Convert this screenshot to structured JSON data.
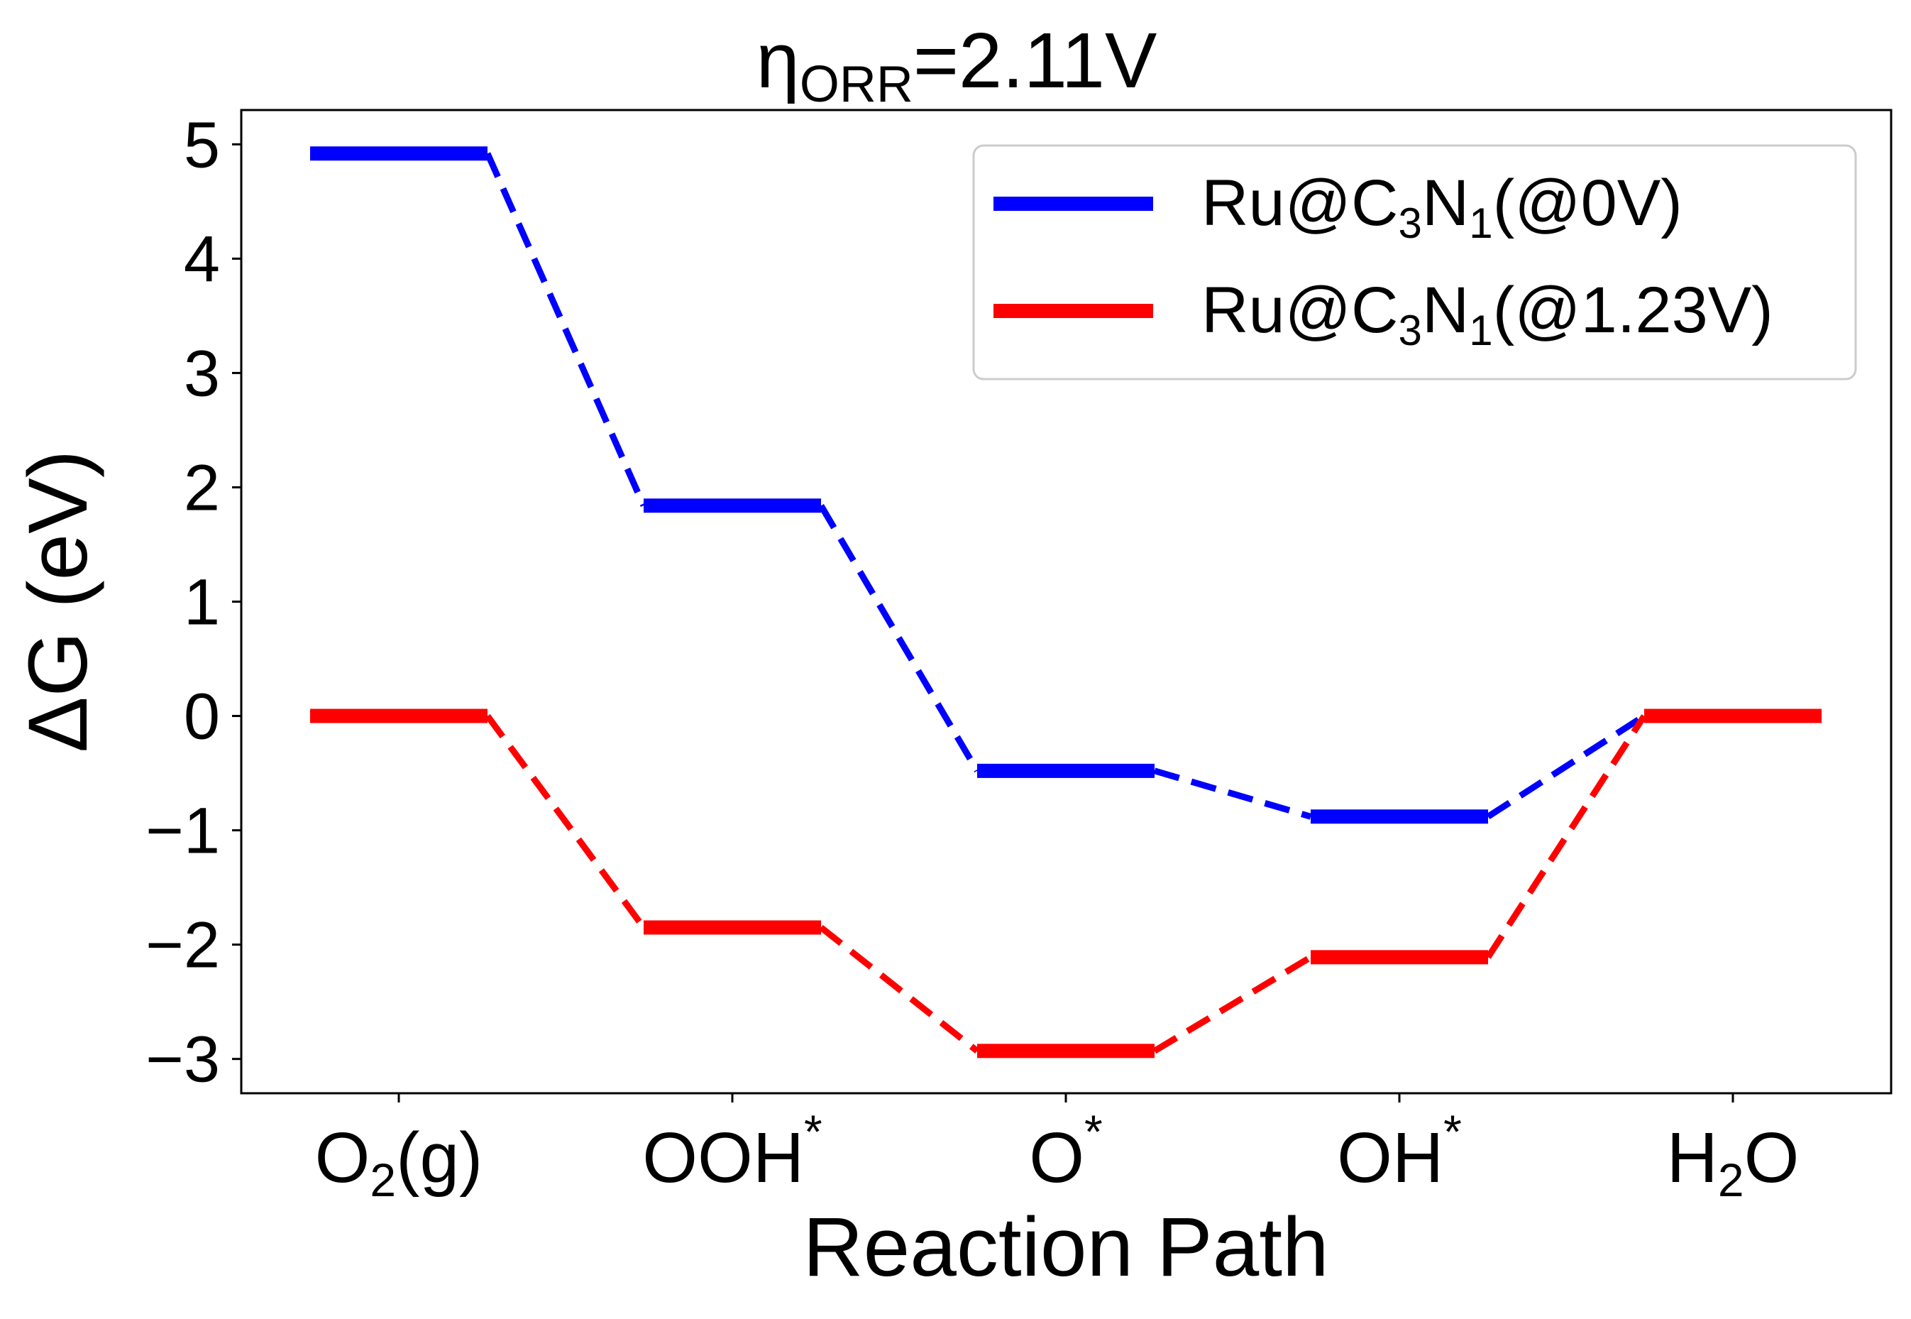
{
  "chart_data": {
    "type": "line",
    "title": {
      "main": "η",
      "sub": "ORR",
      "rest": "=2.11V"
    },
    "xlabel": "Reaction Path",
    "ylabel": "ΔG (eV)",
    "ylim": [
      -3.3,
      5.3
    ],
    "yticks": [
      5,
      4,
      3,
      2,
      1,
      0,
      -1,
      -2,
      -3
    ],
    "ytick_labels": [
      "5",
      "4",
      "3",
      "2",
      "1",
      "0",
      "−1",
      "−2",
      "−3"
    ],
    "categories": [
      {
        "base": "O",
        "sub": "2",
        "rest": "(g)",
        "sup": ""
      },
      {
        "base": "OOH",
        "sub": "",
        "rest": "",
        "sup": "*"
      },
      {
        "base": "O",
        "sub": "",
        "rest": "",
        "sup": "*"
      },
      {
        "base": "OH",
        "sub": "",
        "rest": "",
        "sup": "*"
      },
      {
        "base": "H",
        "sub": "2",
        "rest": "O",
        "sup": ""
      }
    ],
    "grid": false,
    "legend_position": "top-right",
    "series": [
      {
        "name": {
          "base": "Ru@C",
          "s1": "3",
          "mid": "N",
          "s2": "1",
          "rest": "(@0V)"
        },
        "color": "#0000ff",
        "values": [
          4.92,
          1.84,
          -0.48,
          -0.88,
          0.0
        ]
      },
      {
        "name": {
          "base": "Ru@C",
          "s1": "3",
          "mid": "N",
          "s2": "1",
          "rest": "(@1.23V)"
        },
        "color": "#ff0000",
        "values": [
          0.0,
          -1.85,
          -2.93,
          -2.11,
          0.0
        ]
      }
    ]
  }
}
